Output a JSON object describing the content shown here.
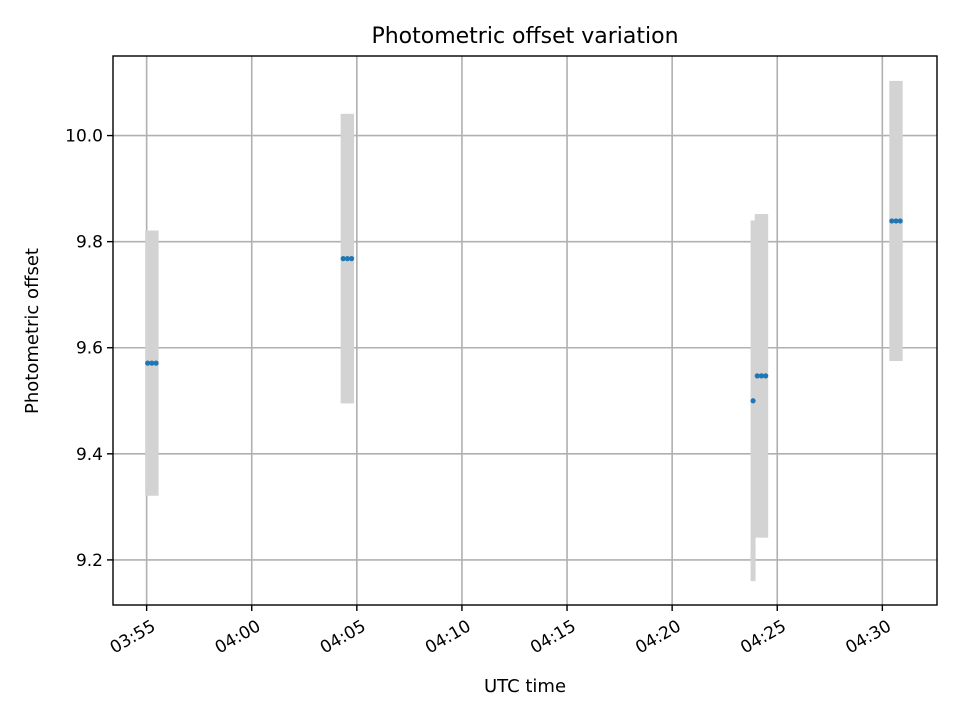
{
  "chart_data": {
    "type": "scatter",
    "title": "Photometric offset variation",
    "xlabel": "UTC time",
    "ylabel": "Photometric offset",
    "xlim": [
      "03:53:24",
      "04:32:36"
    ],
    "ylim": [
      9.115,
      10.15
    ],
    "x_ticks": [
      "03:55",
      "04:00",
      "04:05",
      "04:10",
      "04:15",
      "04:20",
      "04:25",
      "04:30"
    ],
    "y_ticks": [
      9.2,
      9.4,
      9.6,
      9.8,
      10.0
    ],
    "y_tick_labels": [
      "9.2",
      "9.4",
      "9.6",
      "9.8",
      "10.0"
    ],
    "grid": true,
    "series": [
      {
        "color": "#1f77b4",
        "error_color": "#d3d3d3",
        "points": [
          {
            "x": "03:55:03",
            "y": 9.571,
            "yerr": 0.25
          },
          {
            "x": "03:55:15",
            "y": 9.571,
            "yerr": 0.25
          },
          {
            "x": "03:55:27",
            "y": 9.571,
            "yerr": 0.25
          },
          {
            "x": "04:04:21",
            "y": 9.768,
            "yerr": 0.273
          },
          {
            "x": "04:04:33",
            "y": 9.768,
            "yerr": 0.273
          },
          {
            "x": "04:04:45",
            "y": 9.768,
            "yerr": 0.273
          },
          {
            "x": "04:23:51",
            "y": 9.5,
            "yerr": 0.34
          },
          {
            "x": "04:24:03",
            "y": 9.547,
            "yerr": 0.305
          },
          {
            "x": "04:24:15",
            "y": 9.547,
            "yerr": 0.305
          },
          {
            "x": "04:24:27",
            "y": 9.547,
            "yerr": 0.305
          },
          {
            "x": "04:30:27",
            "y": 9.839,
            "yerr": 0.264
          },
          {
            "x": "04:30:39",
            "y": 9.839,
            "yerr": 0.264
          },
          {
            "x": "04:30:51",
            "y": 9.839,
            "yerr": 0.264
          }
        ]
      }
    ]
  }
}
